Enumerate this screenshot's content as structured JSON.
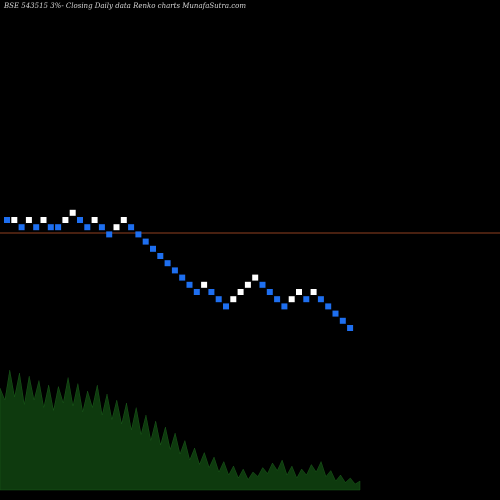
{
  "chart_data": {
    "type": "renko",
    "title": "BSE 543515 3%-  Closing Daily data  Renko  charts MunafaSutra.com",
    "colors": {
      "background": "#000000",
      "up_brick": "#ffffff",
      "down_brick": "#1e6ff0",
      "reference_line": "#c0552d",
      "volume_fill": "#0e3a0e"
    },
    "bricks": [
      {
        "dir": "down",
        "level": 0
      },
      {
        "dir": "up",
        "level": 0
      },
      {
        "dir": "down",
        "level": 1
      },
      {
        "dir": "up",
        "level": 0
      },
      {
        "dir": "down",
        "level": 1
      },
      {
        "dir": "up",
        "level": 0
      },
      {
        "dir": "down",
        "level": 1
      },
      {
        "dir": "down",
        "level": 1
      },
      {
        "dir": "up",
        "level": 0
      },
      {
        "dir": "up",
        "level": -1
      },
      {
        "dir": "down",
        "level": 0
      },
      {
        "dir": "down",
        "level": 1
      },
      {
        "dir": "up",
        "level": 0
      },
      {
        "dir": "down",
        "level": 1
      },
      {
        "dir": "down",
        "level": 2
      },
      {
        "dir": "up",
        "level": 1
      },
      {
        "dir": "up",
        "level": 0
      },
      {
        "dir": "down",
        "level": 1
      },
      {
        "dir": "down",
        "level": 2
      },
      {
        "dir": "down",
        "level": 3
      },
      {
        "dir": "down",
        "level": 4
      },
      {
        "dir": "down",
        "level": 5
      },
      {
        "dir": "down",
        "level": 6
      },
      {
        "dir": "down",
        "level": 7
      },
      {
        "dir": "down",
        "level": 8
      },
      {
        "dir": "down",
        "level": 9
      },
      {
        "dir": "down",
        "level": 10
      },
      {
        "dir": "up",
        "level": 9
      },
      {
        "dir": "down",
        "level": 10
      },
      {
        "dir": "down",
        "level": 11
      },
      {
        "dir": "down",
        "level": 12
      },
      {
        "dir": "up",
        "level": 11
      },
      {
        "dir": "up",
        "level": 10
      },
      {
        "dir": "up",
        "level": 9
      },
      {
        "dir": "up",
        "level": 8
      },
      {
        "dir": "down",
        "level": 9
      },
      {
        "dir": "down",
        "level": 10
      },
      {
        "dir": "down",
        "level": 11
      },
      {
        "dir": "down",
        "level": 12
      },
      {
        "dir": "up",
        "level": 11
      },
      {
        "dir": "up",
        "level": 10
      },
      {
        "dir": "down",
        "level": 11
      },
      {
        "dir": "up",
        "level": 10
      },
      {
        "dir": "down",
        "level": 11
      },
      {
        "dir": "down",
        "level": 12
      },
      {
        "dir": "down",
        "level": 13
      },
      {
        "dir": "down",
        "level": 14
      },
      {
        "dir": "down",
        "level": 15
      }
    ],
    "volume_levels": [
      0.68,
      0.6,
      0.8,
      0.62,
      0.78,
      0.57,
      0.76,
      0.6,
      0.73,
      0.55,
      0.7,
      0.53,
      0.69,
      0.58,
      0.75,
      0.56,
      0.71,
      0.52,
      0.66,
      0.55,
      0.7,
      0.5,
      0.64,
      0.47,
      0.6,
      0.44,
      0.58,
      0.4,
      0.55,
      0.37,
      0.5,
      0.33,
      0.46,
      0.3,
      0.42,
      0.27,
      0.38,
      0.24,
      0.33,
      0.2,
      0.28,
      0.17,
      0.25,
      0.15,
      0.22,
      0.12,
      0.19,
      0.1,
      0.16,
      0.08,
      0.14,
      0.07,
      0.12,
      0.09,
      0.15,
      0.11,
      0.18,
      0.13,
      0.2,
      0.1,
      0.16,
      0.08,
      0.14,
      0.1,
      0.17,
      0.12,
      0.19,
      0.09,
      0.13,
      0.06,
      0.1,
      0.05,
      0.08,
      0.04,
      0.06
    ]
  }
}
